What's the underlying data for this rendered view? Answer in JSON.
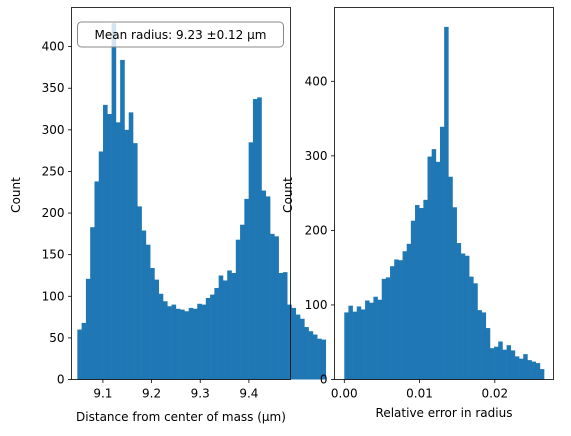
{
  "chart_data": [
    {
      "type": "bar",
      "xlabel": "Distance from center of mass (μm)",
      "ylabel": "Count",
      "xlim": [
        9.0355,
        9.4855
      ],
      "ylim": [
        0,
        447
      ],
      "xticks": [
        "9.1",
        "9.2",
        "9.3",
        "9.4"
      ],
      "xtick_values": [
        9.1,
        9.2,
        9.3,
        9.4
      ],
      "yticks": [
        "0",
        "50",
        "100",
        "150",
        "200",
        "250",
        "300",
        "350",
        "400"
      ],
      "ytick_values": [
        0,
        50,
        100,
        150,
        200,
        250,
        300,
        350,
        400
      ],
      "annotation": {
        "text": "Mean radius: 9.23 ±0.12 μm",
        "placement": "top-center boxed"
      },
      "color": "#1f77b4",
      "bin_start": 9.0475,
      "bin_width": 0.0088,
      "values": [
        60,
        68,
        121,
        183,
        238,
        274,
        330,
        319,
        428,
        309,
        384,
        300,
        321,
        284,
        208,
        179,
        162,
        134,
        120,
        103,
        94,
        88,
        90,
        85,
        84,
        82,
        86,
        85,
        91,
        90,
        98,
        102,
        110,
        125,
        119,
        131,
        128,
        168,
        186,
        217,
        285,
        337,
        339,
        227,
        220,
        175,
        172,
        128,
        129,
        90,
        86,
        78,
        73,
        63,
        58,
        54,
        49,
        48
      ]
    },
    {
      "type": "bar",
      "xlabel": "Relative error in radius",
      "ylabel": "Count",
      "xlim": [
        -0.0013,
        0.0278
      ],
      "ylim": [
        0,
        499
      ],
      "xticks": [
        "0.00",
        "0.01",
        "0.02"
      ],
      "xtick_values": [
        0,
        0.01,
        0.02
      ],
      "yticks": [
        "0",
        "100",
        "200",
        "300",
        "400"
      ],
      "ytick_values": [
        0,
        100,
        200,
        300,
        400
      ],
      "color": "#1f77b4",
      "bin_start": 0,
      "bin_width": 0.000553,
      "values": [
        90,
        99,
        91,
        98,
        94,
        106,
        103,
        111,
        107,
        135,
        137,
        152,
        161,
        160,
        172,
        182,
        213,
        234,
        230,
        241,
        299,
        309,
        292,
        339,
        473,
        272,
        231,
        183,
        169,
        166,
        138,
        129,
        93,
        90,
        69,
        42,
        44,
        51,
        40,
        46,
        39,
        31,
        28,
        34,
        26,
        24,
        22,
        14
      ]
    }
  ]
}
